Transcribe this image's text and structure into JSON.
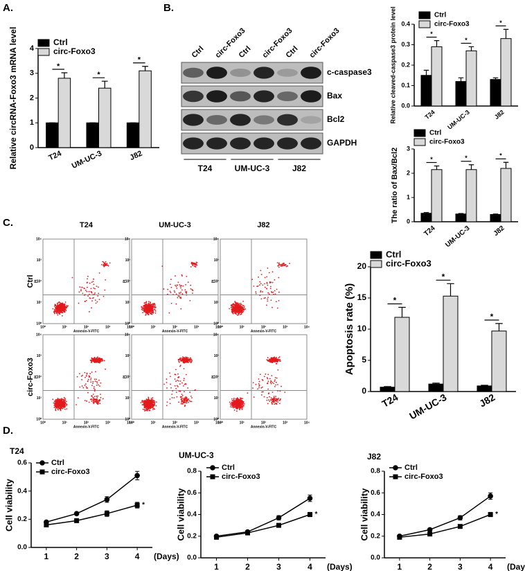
{
  "panels": {
    "A": "A.",
    "B": "B.",
    "C": "C.",
    "D": "D."
  },
  "chart_data": [
    {
      "type": "bar",
      "ylabel": "Relative circRNA-Foxo3 mRNA level",
      "categories": [
        "T24",
        "UM-UC-3",
        "J82"
      ],
      "series": [
        {
          "name": "Ctrl",
          "color": "#000000",
          "values": [
            1,
            1,
            1
          ],
          "errors": [
            0,
            0,
            0
          ]
        },
        {
          "name": "circ-Foxo3",
          "color": "#d9d9d9",
          "values": [
            2.8,
            2.4,
            3.1
          ],
          "errors": [
            0.22,
            0.28,
            0.18
          ]
        }
      ],
      "ylim": [
        0,
        4
      ],
      "yticks": [
        0,
        1,
        2,
        3,
        4
      ],
      "significance": "*"
    },
    {
      "type": "bar",
      "ylabel": "Relative cleaved-caspase3 protein level",
      "categories": [
        "T24",
        "UM-UC-3",
        "J82"
      ],
      "series": [
        {
          "name": "Ctrl",
          "color": "#000000",
          "values": [
            0.15,
            0.12,
            0.13
          ],
          "errors": [
            0.025,
            0.018,
            0.008
          ]
        },
        {
          "name": "circ-Foxo3",
          "color": "#d9d9d9",
          "values": [
            0.29,
            0.27,
            0.33
          ],
          "errors": [
            0.03,
            0.02,
            0.045
          ]
        }
      ],
      "ylim": [
        0,
        0.4
      ],
      "yticks": [
        {
          "value": 0,
          "label": "0.0"
        },
        0.1,
        0.2,
        0.3,
        0.4
      ],
      "significance": "*"
    },
    {
      "type": "bar",
      "ylabel": "The ratio of Bax/Bcl2",
      "categories": [
        "T24",
        "UM-UC-3",
        "J82"
      ],
      "series": [
        {
          "name": "Ctrl",
          "color": "#000000",
          "values": [
            0.35,
            0.32,
            0.3
          ],
          "errors": [
            0.03,
            0.02,
            0.02
          ]
        },
        {
          "name": "circ-Foxo3",
          "color": "#d9d9d9",
          "values": [
            2.15,
            2.15,
            2.2
          ],
          "errors": [
            0.15,
            0.2,
            0.25
          ]
        }
      ],
      "ylim": [
        0,
        3
      ],
      "yticks": [
        0,
        1,
        2,
        3
      ],
      "significance": "*"
    },
    {
      "type": "bar",
      "ylabel": "Apoptosis rate (%)",
      "categories": [
        "T24",
        "UM-UC-3",
        "J82"
      ],
      "series": [
        {
          "name": "Ctrl",
          "color": "#000000",
          "values": [
            0.7,
            1.2,
            0.9
          ],
          "errors": [
            0.1,
            0.15,
            0.1
          ]
        },
        {
          "name": "circ-Foxo3",
          "color": "#d9d9d9",
          "values": [
            11.9,
            15.3,
            9.7
          ],
          "errors": [
            1.6,
            2.0,
            1.2
          ]
        }
      ],
      "ylim": [
        0,
        20
      ],
      "yticks": [
        0,
        5,
        10,
        15,
        20
      ],
      "significance": "*"
    },
    {
      "type": "line",
      "title": "T24",
      "ylabel": "Cell viability",
      "xlabel": "(Days)",
      "x": [
        1,
        2,
        3,
        4
      ],
      "series": [
        {
          "name": "Ctrl",
          "color": "#000000",
          "marker": "circle",
          "values": [
            0.18,
            0.24,
            0.34,
            0.51
          ],
          "errors": [
            0.01,
            0.01,
            0.02,
            0.03
          ]
        },
        {
          "name": "circ-Foxo3",
          "color": "#000000",
          "marker": "square",
          "values": [
            0.16,
            0.19,
            0.24,
            0.3
          ],
          "errors": [
            0.01,
            0.01,
            0.02,
            0.02
          ]
        }
      ],
      "xlim": [
        0.5,
        4.5
      ],
      "xticks": [
        1,
        2,
        3,
        4
      ],
      "ylim": [
        0,
        0.6
      ],
      "yticks": [
        {
          "value": 0,
          "label": "0.0"
        },
        0.2,
        0.4,
        0.6
      ],
      "significance": "*"
    },
    {
      "type": "line",
      "title": "UM-UC-3",
      "ylabel": "Cell viability",
      "xlabel": "(Days)",
      "x": [
        1,
        2,
        3,
        4
      ],
      "series": [
        {
          "name": "Ctrl",
          "color": "#000000",
          "marker": "circle",
          "values": [
            0.2,
            0.24,
            0.37,
            0.55
          ],
          "errors": [
            0.01,
            0.01,
            0.02,
            0.03
          ]
        },
        {
          "name": "circ-Foxo3",
          "color": "#000000",
          "marker": "square",
          "values": [
            0.19,
            0.23,
            0.3,
            0.4
          ],
          "errors": [
            0.01,
            0.01,
            0.01,
            0.02
          ]
        }
      ],
      "xlim": [
        0.5,
        4.5
      ],
      "xticks": [
        1,
        2,
        3,
        4
      ],
      "ylim": [
        0,
        0.8
      ],
      "yticks": [
        {
          "value": 0,
          "label": "0.0"
        },
        0.2,
        0.4,
        0.6,
        0.8
      ],
      "significance": "*"
    },
    {
      "type": "line",
      "title": "J82",
      "ylabel": "Cell viability",
      "xlabel": "(Days)",
      "x": [
        1,
        2,
        3,
        4
      ],
      "series": [
        {
          "name": "Ctrl",
          "color": "#000000",
          "marker": "circle",
          "values": [
            0.2,
            0.26,
            0.37,
            0.57
          ],
          "errors": [
            0.01,
            0.01,
            0.02,
            0.03
          ]
        },
        {
          "name": "circ-Foxo3",
          "color": "#000000",
          "marker": "square",
          "values": [
            0.19,
            0.22,
            0.29,
            0.4
          ],
          "errors": [
            0.01,
            0.01,
            0.01,
            0.02
          ]
        }
      ],
      "xlim": [
        0.5,
        4.5
      ],
      "xticks": [
        1,
        2,
        3,
        4
      ],
      "ylim": [
        0,
        0.8
      ],
      "yticks": [
        {
          "value": 0,
          "label": "0.0"
        },
        0.2,
        0.4,
        0.6,
        0.8
      ],
      "significance": "*"
    }
  ],
  "blot": {
    "lanes": [
      "Ctrl",
      "circ-Foxo3",
      "Ctrl",
      "circ-Foxo3",
      "Ctrl",
      "circ-Foxo3"
    ],
    "proteins": [
      "c-caspase3",
      "Bax",
      "Bcl2",
      "GAPDH"
    ],
    "groups": [
      "T24",
      "UM-UC-3",
      "J82"
    ]
  },
  "flow": {
    "columns": [
      "T24",
      "UM-UC-3",
      "J82"
    ],
    "rows": [
      "Ctrl",
      "circ-Foxo3"
    ],
    "x_label": "Annexin-V-FITC",
    "y_label": "PI",
    "ticks": [
      "10⁰",
      "10¹",
      "10²",
      "10³",
      "10⁴"
    ]
  }
}
